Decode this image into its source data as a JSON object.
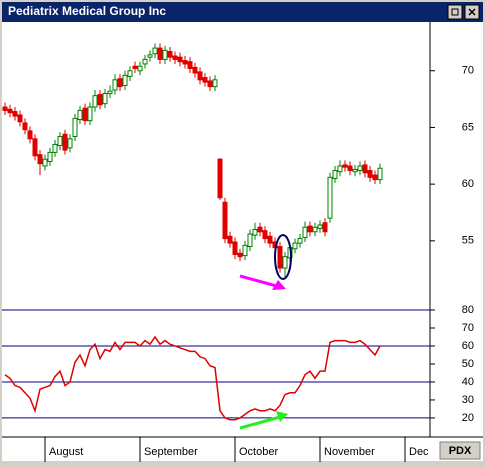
{
  "window": {
    "title": "Pediatrix Medical Group Inc",
    "symbol": "PDX"
  },
  "chart_data": [
    {
      "type": "candlestick",
      "up_color": "#008000",
      "down_color": "#e00000",
      "xlim": [
        -1,
        85
      ],
      "ylim": [
        48.9,
        74.3
      ],
      "yticks": [
        55,
        60,
        65,
        70
      ],
      "xticks": [
        {
          "value": 8,
          "label": "August"
        },
        {
          "value": 27,
          "label": "September"
        },
        {
          "value": 46,
          "label": "October"
        },
        {
          "value": 63,
          "label": "November"
        },
        {
          "value": 80,
          "label": "Dec"
        }
      ],
      "open": [
        66.8,
        66.6,
        66.4,
        66.1,
        65.4,
        64.7,
        64.0,
        62.6,
        61.6,
        62.0,
        62.8,
        63.4,
        64.4,
        63.2,
        64.2,
        65.7,
        66.7,
        65.6,
        66.8,
        67.9,
        67.1,
        68.0,
        68.3,
        69.3,
        68.7,
        69.5,
        70.4,
        70.0,
        70.6,
        71.2,
        71.5,
        72.0,
        71.0,
        71.7,
        71.3,
        71.2,
        70.9,
        70.8,
        70.3,
        69.9,
        69.4,
        69.1,
        68.6,
        62.2,
        58.4,
        55.4,
        54.9,
        53.9,
        53.7,
        54.5,
        55.5,
        56.2,
        55.9,
        55.4,
        54.9,
        54.5,
        52.6,
        53.5,
        54.3,
        54.8,
        55.3,
        56.3,
        55.8,
        56.1,
        56.6,
        57.0,
        60.5,
        61.1,
        61.7,
        61.6,
        61.1,
        61.2,
        61.7,
        61.2,
        60.8,
        60.4
      ],
      "high": [
        67.2,
        67.0,
        66.8,
        66.5,
        65.8,
        65.1,
        64.4,
        63.0,
        62.6,
        63.2,
        63.9,
        64.6,
        64.8,
        64.4,
        66.2,
        66.9,
        67.1,
        67.2,
        68.3,
        68.3,
        68.4,
        68.7,
        69.7,
        69.7,
        70.0,
        70.4,
        70.8,
        70.8,
        71.4,
        71.8,
        72.4,
        72.4,
        72.2,
        72.1,
        71.7,
        71.6,
        71.3,
        71.2,
        70.7,
        70.3,
        69.8,
        69.5,
        69.6,
        62.3,
        58.8,
        55.8,
        55.3,
        54.3,
        55.0,
        56.0,
        56.6,
        56.6,
        56.3,
        55.8,
        55.3,
        54.9,
        54.0,
        54.8,
        55.2,
        55.6,
        56.7,
        56.7,
        56.6,
        56.8,
        57.0,
        61.0,
        61.6,
        62.1,
        62.1,
        62.0,
        61.7,
        62.0,
        62.1,
        61.6,
        61.2,
        61.8
      ],
      "low": [
        66.1,
        65.9,
        65.6,
        65.1,
        64.4,
        63.6,
        62.1,
        60.8,
        61.2,
        61.6,
        62.4,
        63.0,
        62.6,
        62.8,
        63.8,
        65.3,
        65.2,
        65.2,
        66.4,
        66.6,
        66.7,
        67.6,
        67.9,
        68.2,
        68.3,
        69.1,
        69.8,
        69.6,
        70.2,
        70.8,
        71.1,
        70.6,
        70.6,
        70.8,
        70.6,
        70.4,
        70.2,
        69.8,
        69.4,
        68.8,
        68.6,
        68.2,
        68.2,
        58.6,
        54.8,
        54.4,
        53.4,
        53.2,
        53.3,
        54.1,
        55.1,
        55.4,
        54.8,
        54.4,
        54.0,
        52.2,
        51.8,
        53.1,
        53.9,
        54.4,
        54.9,
        55.4,
        55.4,
        55.7,
        55.4,
        56.6,
        60.1,
        60.7,
        61.1,
        60.8,
        60.7,
        60.8,
        60.6,
        60.2,
        60.0,
        60.0
      ],
      "close": [
        66.5,
        66.3,
        66.0,
        65.5,
        64.8,
        64.0,
        62.5,
        61.8,
        62.2,
        62.8,
        63.5,
        64.2,
        63.0,
        64.0,
        65.8,
        66.5,
        65.6,
        66.8,
        67.8,
        67.0,
        68.0,
        68.2,
        69.2,
        68.6,
        69.6,
        70.0,
        70.2,
        70.4,
        71.0,
        71.4,
        72.0,
        71.0,
        71.8,
        71.2,
        71.0,
        70.8,
        70.6,
        70.2,
        69.8,
        69.2,
        69.0,
        68.6,
        69.2,
        58.8,
        55.2,
        54.8,
        53.8,
        53.6,
        54.6,
        55.6,
        56.0,
        55.8,
        55.2,
        54.8,
        54.4,
        52.6,
        53.6,
        54.4,
        54.8,
        55.2,
        56.2,
        55.8,
        56.2,
        56.4,
        55.8,
        60.6,
        61.2,
        61.6,
        61.5,
        61.2,
        61.3,
        61.6,
        61.0,
        60.6,
        60.4,
        61.4
      ]
    },
    {
      "type": "line",
      "color": "#e00000",
      "grid_color": "#000080",
      "xlim": [
        -1,
        85
      ],
      "ylim": [
        9.4,
        80
      ],
      "yticks": [
        20,
        30,
        40,
        50,
        60,
        70,
        80
      ],
      "grid_levels": [
        20,
        40,
        60,
        80
      ],
      "values": [
        44,
        42,
        38,
        37,
        34,
        31,
        24,
        36,
        37,
        38,
        43,
        46,
        38,
        40,
        51,
        55,
        49,
        58,
        61,
        53,
        58,
        57,
        62,
        58,
        62,
        62,
        62,
        60,
        63,
        61,
        65,
        61,
        63,
        61,
        60,
        59,
        58,
        57,
        57,
        54,
        53,
        49,
        48,
        24,
        20,
        19,
        19,
        20,
        22,
        24,
        25,
        24,
        24,
        25,
        24,
        27,
        33,
        34,
        34,
        38,
        44,
        46,
        42,
        46,
        46,
        62,
        63,
        63,
        63,
        62,
        62,
        63,
        61,
        58,
        55,
        60
      ]
    }
  ]
}
